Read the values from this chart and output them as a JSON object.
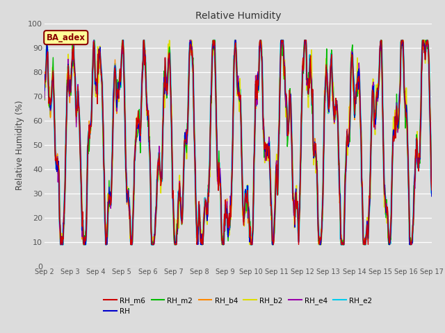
{
  "title": "Relative Humidity",
  "ylabel": "Relative Humidity (%)",
  "ylim": [
    0,
    100
  ],
  "background_color": "#dcdcdc",
  "plot_bg_color": "#dcdcdc",
  "grid_color": "#ffffff",
  "annotation_text": "BA_adex",
  "annotation_bg": "#ffff99",
  "annotation_border": "#8b0000",
  "series_order_plot": [
    "RH_e2",
    "RH_b2",
    "RH_b4",
    "RH_m2",
    "RH_e4",
    "RH",
    "RH_m6"
  ],
  "series_order_legend": [
    "RH_m6",
    "RH",
    "RH_m2",
    "RH_b4",
    "RH_b2",
    "RH_e4",
    "RH_e2"
  ],
  "series": {
    "RH_m6": {
      "color": "#cc0000",
      "lw": 1.0,
      "zorder": 6
    },
    "RH": {
      "color": "#0000cc",
      "lw": 1.0,
      "zorder": 5
    },
    "RH_m2": {
      "color": "#00bb00",
      "lw": 1.0,
      "zorder": 5
    },
    "RH_b4": {
      "color": "#ff8800",
      "lw": 1.0,
      "zorder": 5
    },
    "RH_b2": {
      "color": "#dddd00",
      "lw": 1.2,
      "zorder": 4
    },
    "RH_e4": {
      "color": "#9900aa",
      "lw": 1.0,
      "zorder": 5
    },
    "RH_e2": {
      "color": "#00ccee",
      "lw": 2.0,
      "zorder": 1
    }
  },
  "xtick_labels": [
    "Sep 2",
    "Sep 3",
    "Sep 4",
    "Sep 5",
    "Sep 6",
    "Sep 7",
    "Sep 8",
    "Sep 9",
    "Sep 10",
    "Sep 11",
    "Sep 12",
    "Sep 13",
    "Sep 14",
    "Sep 15",
    "Sep 16",
    "Sep 17"
  ],
  "ytick_vals": [
    0,
    10,
    20,
    30,
    40,
    50,
    60,
    70,
    80,
    90,
    100
  ],
  "n_points": 720,
  "seed": 17
}
